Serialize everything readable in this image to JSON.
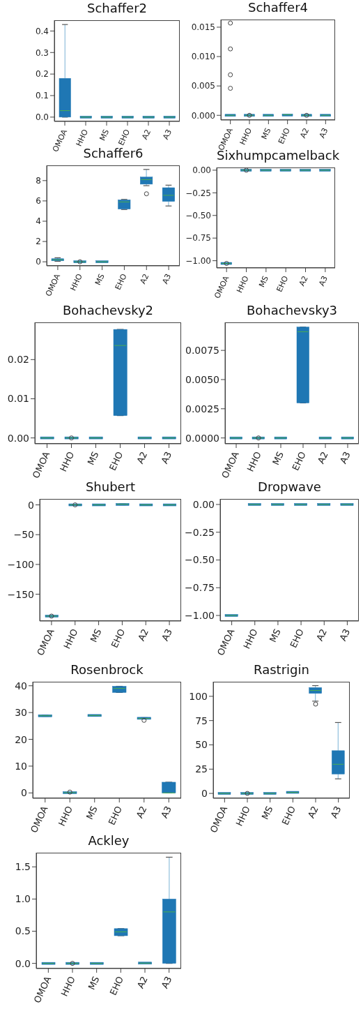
{
  "chart_data": [
    {
      "type": "box",
      "title": "Schaffer2",
      "categories": [
        "OMOA",
        "HHO",
        "MS",
        "EHO",
        "A2",
        "A3"
      ],
      "color": "#1f77b4",
      "ylim": [
        -0.02,
        0.45
      ],
      "yticks": [
        {
          "value": 0,
          "label": "0.0"
        },
        0.1,
        0.2,
        0.3,
        0.4
      ],
      "grid": false,
      "boxes": [
        {
          "low": 0,
          "q1": 0,
          "median": 0.03,
          "q3": 0.18,
          "high": 0.43
        },
        {
          "low": 0,
          "q1": 0,
          "median": 0,
          "q3": 0,
          "high": 0
        },
        {
          "low": 0,
          "q1": 0,
          "median": 0,
          "q3": 0,
          "high": 0
        },
        {
          "low": 0,
          "q1": 0,
          "median": 0,
          "q3": 0,
          "high": 0
        },
        {
          "low": 0,
          "q1": 0,
          "median": 0,
          "q3": 0,
          "high": 0
        },
        {
          "low": 0,
          "q1": 0,
          "median": 0,
          "q3": 0,
          "high": 0
        }
      ]
    },
    {
      "type": "box",
      "title": "Schaffer4",
      "categories": [
        "OMOA",
        "HHO",
        "MS",
        "EHO",
        "A2",
        "A3"
      ],
      "color": "#1f77b4",
      "ylim": [
        -0.0008,
        0.0163
      ],
      "yticks": [
        {
          "value": 0,
          "label": "0.000"
        },
        0.005,
        {
          "value": 0.01,
          "label": "0.010"
        },
        0.015
      ],
      "grid": false,
      "boxes": [
        {
          "low": 0,
          "q1": 0,
          "median": 0,
          "q3": 0,
          "high": 0,
          "outliers": [
            0.0157,
            0.0113,
            0.0069,
            0.0046
          ]
        },
        {
          "low": 0,
          "q1": 0,
          "median": 0,
          "q3": 0,
          "high": 0,
          "outliers": [
            0
          ]
        },
        {
          "low": 0,
          "q1": 0,
          "median": 0,
          "q3": 0,
          "high": 0
        },
        {
          "low": 0,
          "q1": 0,
          "median": 0.0001,
          "q3": 0.0001,
          "high": 0.0001
        },
        {
          "low": 0,
          "q1": 0,
          "median": 0,
          "q3": 0,
          "high": 0,
          "outliers": [
            0
          ]
        },
        {
          "low": 0,
          "q1": 0,
          "median": 0,
          "q3": 0,
          "high": 0
        }
      ]
    },
    {
      "type": "box",
      "title": "Schaffer6",
      "categories": [
        "OMOA",
        "HHO",
        "MS",
        "EHO",
        "A2",
        "A3"
      ],
      "color": "#1f77b4",
      "ylim": [
        -0.4,
        9.5
      ],
      "yticks": [
        0,
        2,
        4,
        6,
        8
      ],
      "grid": false,
      "boxes": [
        {
          "low": 0.05,
          "q1": 0.12,
          "median": 0.2,
          "q3": 0.28,
          "high": 0.4
        },
        {
          "low": 0,
          "q1": 0,
          "median": 0,
          "q3": 0,
          "high": 0,
          "outliers": [
            0
          ]
        },
        {
          "low": 0,
          "q1": 0,
          "median": 0,
          "q3": 0,
          "high": 0
        },
        {
          "low": 5.15,
          "q1": 5.2,
          "median": 5.9,
          "q3": 6.1,
          "high": 6.15
        },
        {
          "low": 7.5,
          "q1": 7.65,
          "median": 8.1,
          "q3": 8.35,
          "high": 9.1,
          "outliers": [
            6.7
          ]
        },
        {
          "low": 5.5,
          "q1": 5.95,
          "median": 6.55,
          "q3": 7.3,
          "high": 7.55
        }
      ]
    },
    {
      "type": "box",
      "title": "Sixhumpcamelback",
      "categories": [
        "OMOA",
        "HHO",
        "MS",
        "EHO",
        "A2",
        "A3"
      ],
      "color": "#1f77b4",
      "ylim": [
        -1.08,
        0.03
      ],
      "yticks": [
        {
          "value": 0,
          "label": "0.00"
        },
        {
          "value": -0.25,
          "label": "−0.25"
        },
        {
          "value": -0.5,
          "label": "−0.50"
        },
        {
          "value": -0.75,
          "label": "−0.75"
        },
        {
          "value": -1,
          "label": "−1.00"
        }
      ],
      "grid": false,
      "boxes": [
        {
          "low": -1.03,
          "q1": -1.03,
          "median": -1.03,
          "q3": -1.03,
          "high": -1.03,
          "outliers": [
            -1.03
          ]
        },
        {
          "low": 0,
          "q1": 0,
          "median": 0,
          "q3": 0,
          "high": 0,
          "outliers": [
            0
          ]
        },
        {
          "low": 0,
          "q1": 0,
          "median": 0,
          "q3": 0,
          "high": 0
        },
        {
          "low": 0,
          "q1": 0,
          "median": 0,
          "q3": 0,
          "high": 0
        },
        {
          "low": 0,
          "q1": 0,
          "median": 0,
          "q3": 0,
          "high": 0
        },
        {
          "low": 0,
          "q1": 0,
          "median": 0,
          "q3": 0,
          "high": 0
        }
      ]
    },
    {
      "type": "box",
      "title": "Bohachevsky2",
      "categories": [
        "OMOA",
        "HHO",
        "MS",
        "EHO",
        "A2",
        "A3"
      ],
      "color": "#1f77b4",
      "ylim": [
        -0.0015,
        0.0295
      ],
      "yticks": [
        {
          "value": 0,
          "label": "0.00"
        },
        0.01,
        0.02
      ],
      "grid": false,
      "boxes": [
        {
          "low": 0,
          "q1": 0,
          "median": 0,
          "q3": 0,
          "high": 0
        },
        {
          "low": 0,
          "q1": 0,
          "median": 0,
          "q3": 0,
          "high": 0,
          "outliers": [
            0
          ]
        },
        {
          "low": 0,
          "q1": 0,
          "median": 0,
          "q3": 0,
          "high": 0
        },
        {
          "low": 0.0057,
          "q1": 0.0057,
          "median": 0.0236,
          "q3": 0.0277,
          "high": 0.0277
        },
        {
          "low": 0,
          "q1": 0,
          "median": 0,
          "q3": 0,
          "high": 0
        },
        {
          "low": 0,
          "q1": 0,
          "median": 0,
          "q3": 0,
          "high": 0
        }
      ]
    },
    {
      "type": "box",
      "title": "Bohachevsky3",
      "categories": [
        "OMOA",
        "HHO",
        "MS",
        "EHO",
        "A2",
        "A3"
      ],
      "color": "#1f77b4",
      "ylim": [
        -0.0005,
        0.0099
      ],
      "yticks": [
        {
          "value": 0,
          "label": "0.0000"
        },
        0.0025,
        {
          "value": 0.005,
          "label": "0.0050"
        },
        0.0075
      ],
      "grid": false,
      "boxes": [
        {
          "low": 0,
          "q1": 0,
          "median": 0,
          "q3": 0,
          "high": 0
        },
        {
          "low": 0,
          "q1": 0,
          "median": 0,
          "q3": 0,
          "high": 0,
          "outliers": [
            0
          ]
        },
        {
          "low": 0,
          "q1": 0,
          "median": 0,
          "q3": 0,
          "high": 0
        },
        {
          "low": 0.003,
          "q1": 0.003,
          "median": 0.0091,
          "q3": 0.0095,
          "high": 0.0095
        },
        {
          "low": 0,
          "q1": 0,
          "median": 0,
          "q3": 0,
          "high": 0
        },
        {
          "low": 0,
          "q1": 0,
          "median": 0,
          "q3": 0,
          "high": 0
        }
      ]
    },
    {
      "type": "box",
      "title": "Shubert",
      "categories": [
        "OMOA",
        "HHO",
        "MS",
        "EHO",
        "A2",
        "A3"
      ],
      "color": "#1f77b4",
      "ylim": [
        -195,
        10
      ],
      "yticks": [
        {
          "value": 0,
          "label": "0"
        },
        {
          "value": -50,
          "label": "−50"
        },
        {
          "value": -100,
          "label": "−100"
        },
        {
          "value": -150,
          "label": "−150"
        }
      ],
      "grid": false,
      "boxes": [
        {
          "low": -186.7,
          "q1": -186.7,
          "median": -186.7,
          "q3": -186.7,
          "high": -186.7,
          "outliers": [
            -186.7
          ]
        },
        {
          "low": 0,
          "q1": 0,
          "median": 0,
          "q3": 0,
          "high": 0,
          "outliers": [
            0
          ]
        },
        {
          "low": 0,
          "q1": 0,
          "median": 0,
          "q3": 0,
          "high": 0
        },
        {
          "low": 0,
          "q1": 0,
          "median": 1,
          "q3": 1.5,
          "high": 1.5
        },
        {
          "low": 0,
          "q1": 0,
          "median": 0,
          "q3": 0,
          "high": 0
        },
        {
          "low": 0,
          "q1": 0,
          "median": 0,
          "q3": 0,
          "high": 0
        }
      ]
    },
    {
      "type": "box",
      "title": "Dropwave",
      "categories": [
        "OMOA",
        "HHO",
        "MS",
        "EHO",
        "A2",
        "A3"
      ],
      "color": "#1f77b4",
      "ylim": [
        -1.05,
        0.05
      ],
      "yticks": [
        {
          "value": 0,
          "label": "0.00"
        },
        {
          "value": -0.25,
          "label": "−0.25"
        },
        {
          "value": -0.5,
          "label": "−0.50"
        },
        {
          "value": -0.75,
          "label": "−0.75"
        },
        {
          "value": -1,
          "label": "−1.00"
        }
      ],
      "grid": false,
      "boxes": [
        {
          "low": -1,
          "q1": -1,
          "median": -1,
          "q3": -1,
          "high": -1
        },
        {
          "low": 0,
          "q1": 0,
          "median": 0,
          "q3": 0,
          "high": 0
        },
        {
          "low": 0,
          "q1": 0,
          "median": 0,
          "q3": 0,
          "high": 0
        },
        {
          "low": 0,
          "q1": 0,
          "median": 0,
          "q3": 0,
          "high": 0
        },
        {
          "low": 0,
          "q1": 0,
          "median": 0,
          "q3": 0,
          "high": 0
        },
        {
          "low": 0,
          "q1": 0,
          "median": 0,
          "q3": 0,
          "high": 0
        }
      ]
    },
    {
      "type": "box",
      "title": "Rosenbrock",
      "categories": [
        "OMOA",
        "HHO",
        "MS",
        "EHO",
        "A2",
        "A3"
      ],
      "color": "#1f77b4",
      "ylim": [
        -2,
        41.5
      ],
      "yticks": [
        0,
        10,
        20,
        30,
        40
      ],
      "grid": false,
      "boxes": [
        {
          "low": 28.6,
          "q1": 28.7,
          "median": 28.8,
          "q3": 28.9,
          "high": 29
        },
        {
          "low": 0,
          "q1": 0.05,
          "median": 0.1,
          "q3": 0.15,
          "high": 0.2,
          "outliers": [
            0.3
          ]
        },
        {
          "low": 28.8,
          "q1": 28.9,
          "median": 28.9,
          "q3": 28.9,
          "high": 29
        },
        {
          "low": 37.5,
          "q1": 37.5,
          "median": 39,
          "q3": 39.8,
          "high": 39.8
        },
        {
          "low": 27.6,
          "q1": 27.7,
          "median": 27.8,
          "q3": 28,
          "high": 28.1,
          "outliers": [
            27.1
          ]
        },
        {
          "low": 0,
          "q1": 0,
          "median": 0,
          "q3": 4,
          "high": 4
        }
      ]
    },
    {
      "type": "box",
      "title": "Rastrigin",
      "categories": [
        "OMOA",
        "HHO",
        "MS",
        "EHO",
        "A2",
        "A3"
      ],
      "color": "#1f77b4",
      "ylim": [
        -5,
        115
      ],
      "yticks": [
        0,
        25,
        50,
        75,
        100
      ],
      "grid": false,
      "boxes": [
        {
          "low": 0,
          "q1": 0,
          "median": 0,
          "q3": 0,
          "high": 0
        },
        {
          "low": 0,
          "q1": 0,
          "median": 0,
          "q3": 0,
          "high": 0,
          "outliers": [
            0
          ]
        },
        {
          "low": 0,
          "q1": 0,
          "median": 0,
          "q3": 0,
          "high": 0
        },
        {
          "low": 0.8,
          "q1": 1,
          "median": 1,
          "q3": 1.2,
          "high": 1.2
        },
        {
          "low": 95,
          "q1": 103,
          "median": 106,
          "q3": 109,
          "high": 111,
          "outliers": [
            92
          ]
        },
        {
          "low": 15,
          "q1": 20,
          "median": 30,
          "q3": 44,
          "high": 73
        }
      ]
    },
    {
      "type": "box",
      "title": "Ackley",
      "categories": [
        "OMOA",
        "HHO",
        "MS",
        "EHO",
        "A2",
        "A3"
      ],
      "color": "#1f77b4",
      "ylim": [
        -0.08,
        1.72
      ],
      "yticks": [
        {
          "value": 0,
          "label": "0.0"
        },
        0.5,
        {
          "value": 1,
          "label": "1.0"
        },
        1.5
      ],
      "grid": false,
      "boxes": [
        {
          "low": 0,
          "q1": 0,
          "median": 0,
          "q3": 0,
          "high": 0
        },
        {
          "low": 0,
          "q1": 0,
          "median": 0,
          "q3": 0,
          "high": 0,
          "outliers": [
            0
          ]
        },
        {
          "low": 0,
          "q1": 0,
          "median": 0,
          "q3": 0,
          "high": 0
        },
        {
          "low": 0.43,
          "q1": 0.43,
          "median": 0.49,
          "q3": 0.54,
          "high": 0.54
        },
        {
          "low": 0.004,
          "q1": 0.004,
          "median": 0.004,
          "q3": 0.004,
          "high": 0.004
        },
        {
          "low": 0,
          "q1": 0,
          "median": 0.8,
          "q3": 1,
          "high": 1.65
        }
      ]
    }
  ]
}
